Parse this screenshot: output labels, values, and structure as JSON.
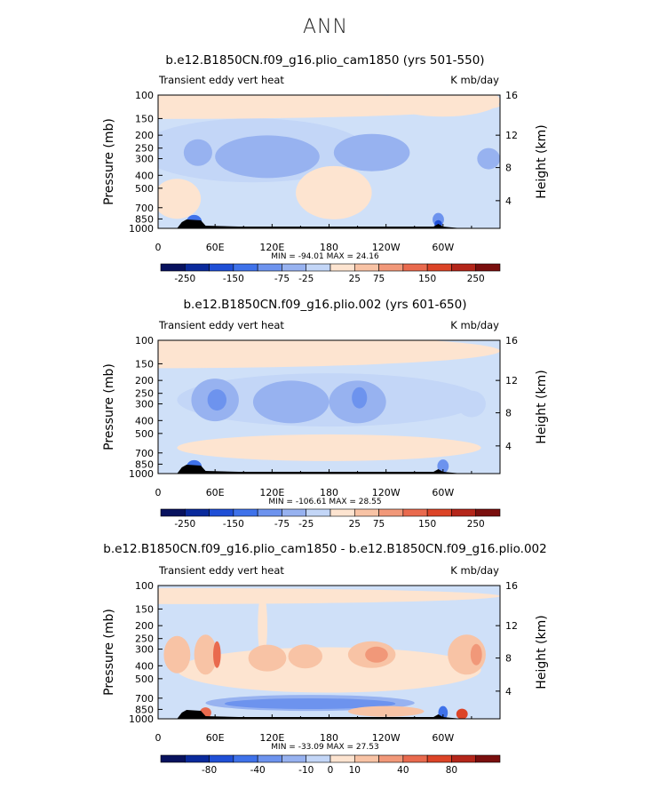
{
  "page_title": "ANN",
  "chart_data": [
    {
      "type": "heatmap",
      "title": "b.e12.B1850CN.f09_g16.plio_cam1850 (yrs 501-550)",
      "variable_label": "Transient eddy vert heat",
      "units": "K mb/day",
      "ylabel": "Pressure (mb)",
      "ylabel_right": "Height (km)",
      "x_ticks": [
        "0",
        "60E",
        "120E",
        "180",
        "120W",
        "60W"
      ],
      "y_ticks": [
        "100",
        "150",
        "200",
        "250",
        "300",
        "400",
        "500",
        "700",
        "850",
        "1000"
      ],
      "y_ticks_right": [
        "16",
        "12",
        "8",
        "4"
      ],
      "min_max": "MIN = -94.01   MAX =  24.16",
      "colorbar_labels": [
        "-250",
        "-150",
        "-75",
        "-25",
        "25",
        "75",
        "150",
        "250"
      ]
    },
    {
      "type": "heatmap",
      "title": "b.e12.B1850CN.f09_g16.plio.002 (yrs 601-650)",
      "variable_label": "Transient eddy vert heat",
      "units": "K mb/day",
      "ylabel": "Pressure (mb)",
      "ylabel_right": "Height (km)",
      "x_ticks": [
        "0",
        "60E",
        "120E",
        "180",
        "120W",
        "60W"
      ],
      "y_ticks": [
        "100",
        "150",
        "200",
        "250",
        "300",
        "400",
        "500",
        "700",
        "850",
        "1000"
      ],
      "y_ticks_right": [
        "16",
        "12",
        "8",
        "4"
      ],
      "min_max": "MIN = -106.61   MAX =  28.55",
      "colorbar_labels": [
        "-250",
        "-150",
        "-75",
        "-25",
        "25",
        "75",
        "150",
        "250"
      ]
    },
    {
      "type": "heatmap",
      "title": "b.e12.B1850CN.f09_g16.plio_cam1850 - b.e12.B1850CN.f09_g16.plio.002",
      "variable_label": "Transient eddy vert heat",
      "units": "K mb/day",
      "ylabel": "Pressure (mb)",
      "ylabel_right": "Height (km)",
      "x_ticks": [
        "0",
        "60E",
        "120E",
        "180",
        "120W",
        "60W"
      ],
      "y_ticks": [
        "100",
        "150",
        "200",
        "250",
        "300",
        "400",
        "500",
        "700",
        "850",
        "1000"
      ],
      "y_ticks_right": [
        "16",
        "12",
        "8",
        "4"
      ],
      "min_max": "MIN = -33.09   MAX =  27.53",
      "colorbar_labels": [
        "-80",
        "-40",
        "-10",
        "0",
        "10",
        "40",
        "80"
      ]
    }
  ],
  "colors": {
    "background_warm": "#fde4d0",
    "background_cool": "#cfe0f8",
    "palette": [
      "#08125e",
      "#0a2a9c",
      "#1f4fd6",
      "#3f72ea",
      "#6d93ee",
      "#97b2f0",
      "#c3d6f7",
      "#fde4d0",
      "#f8c3a5",
      "#f19879",
      "#e96a4e",
      "#dc4427",
      "#b4261a",
      "#7a0f0e"
    ]
  }
}
